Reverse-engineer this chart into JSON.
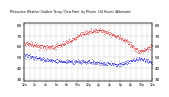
{
  "title": "Milwaukee Weather Outdoor Temp / Dew Point  by Minute  (24 Hours) (Alternate)",
  "bg_color": "#ffffff",
  "grid_color": "#888888",
  "temp_color": "#cc0000",
  "dew_color": "#0000cc",
  "ylim": [
    28,
    82
  ],
  "xlim": [
    0,
    1440
  ],
  "yticks_left": [
    30,
    40,
    50,
    60,
    70,
    80
  ],
  "yticks_right": [
    30,
    40,
    50,
    60,
    70,
    80
  ],
  "xtick_step": 60,
  "num_points": 1440,
  "temp_seed": 10,
  "dew_seed": 20
}
